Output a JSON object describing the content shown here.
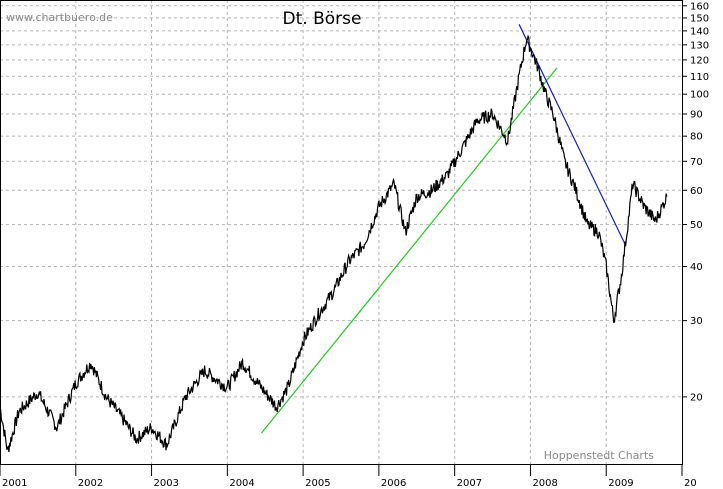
{
  "chart_data": {
    "type": "line",
    "title": "Dt. Börse",
    "watermark": "www.chartbuero.de",
    "source": "Hoppenstedt Charts",
    "y_scale": "log",
    "ylim": [
      14,
      165
    ],
    "y_ticks": [
      160,
      150,
      140,
      130,
      120,
      110,
      100,
      90,
      80,
      70,
      60,
      50,
      40,
      30,
      20
    ],
    "x_ticks": [
      "2001",
      "2002",
      "2003",
      "2004",
      "2005",
      "2006",
      "2007",
      "2008",
      "2009",
      "20"
    ],
    "xlim": [
      2001.0,
      2010.0
    ],
    "grid": true,
    "series": [
      {
        "color": "#000000",
        "x": [
          2001.0,
          2001.1,
          2001.25,
          2001.5,
          2001.75,
          2002.0,
          2002.2,
          2002.4,
          2002.6,
          2002.8,
          2003.0,
          2003.2,
          2003.45,
          2003.7,
          2004.0,
          2004.2,
          2004.45,
          2004.65,
          2004.8,
          2005.0,
          2005.2,
          2005.4,
          2005.6,
          2005.8,
          2006.0,
          2006.2,
          2006.35,
          2006.5,
          2006.7,
          2006.9,
          2007.1,
          2007.3,
          2007.5,
          2007.7,
          2007.85,
          2007.95,
          2008.1,
          2008.2,
          2008.3,
          2008.45,
          2008.6,
          2008.75,
          2008.9,
          2009.0,
          2009.1,
          2009.2,
          2009.35,
          2009.5,
          2009.65,
          2009.8
        ],
        "y": [
          19,
          15,
          18.5,
          20.5,
          17,
          21.5,
          24,
          20,
          18,
          16,
          17,
          15.5,
          20,
          23,
          21,
          24,
          21,
          19,
          21,
          27,
          31,
          35,
          41,
          45,
          55,
          62,
          48,
          58,
          60,
          65,
          75,
          87,
          90,
          78,
          110,
          135,
          115,
          100,
          90,
          70,
          60,
          50,
          48,
          40,
          30,
          38,
          62,
          55,
          51,
          58
        ]
      }
    ],
    "trendlines": [
      {
        "color": "#22cc22",
        "x": [
          2004.45,
          2008.35
        ],
        "y": [
          16.5,
          115
        ]
      },
      {
        "color": "#1a1acc",
        "x": [
          2007.85,
          2009.25
        ],
        "y": [
          145,
          45
        ]
      }
    ]
  }
}
